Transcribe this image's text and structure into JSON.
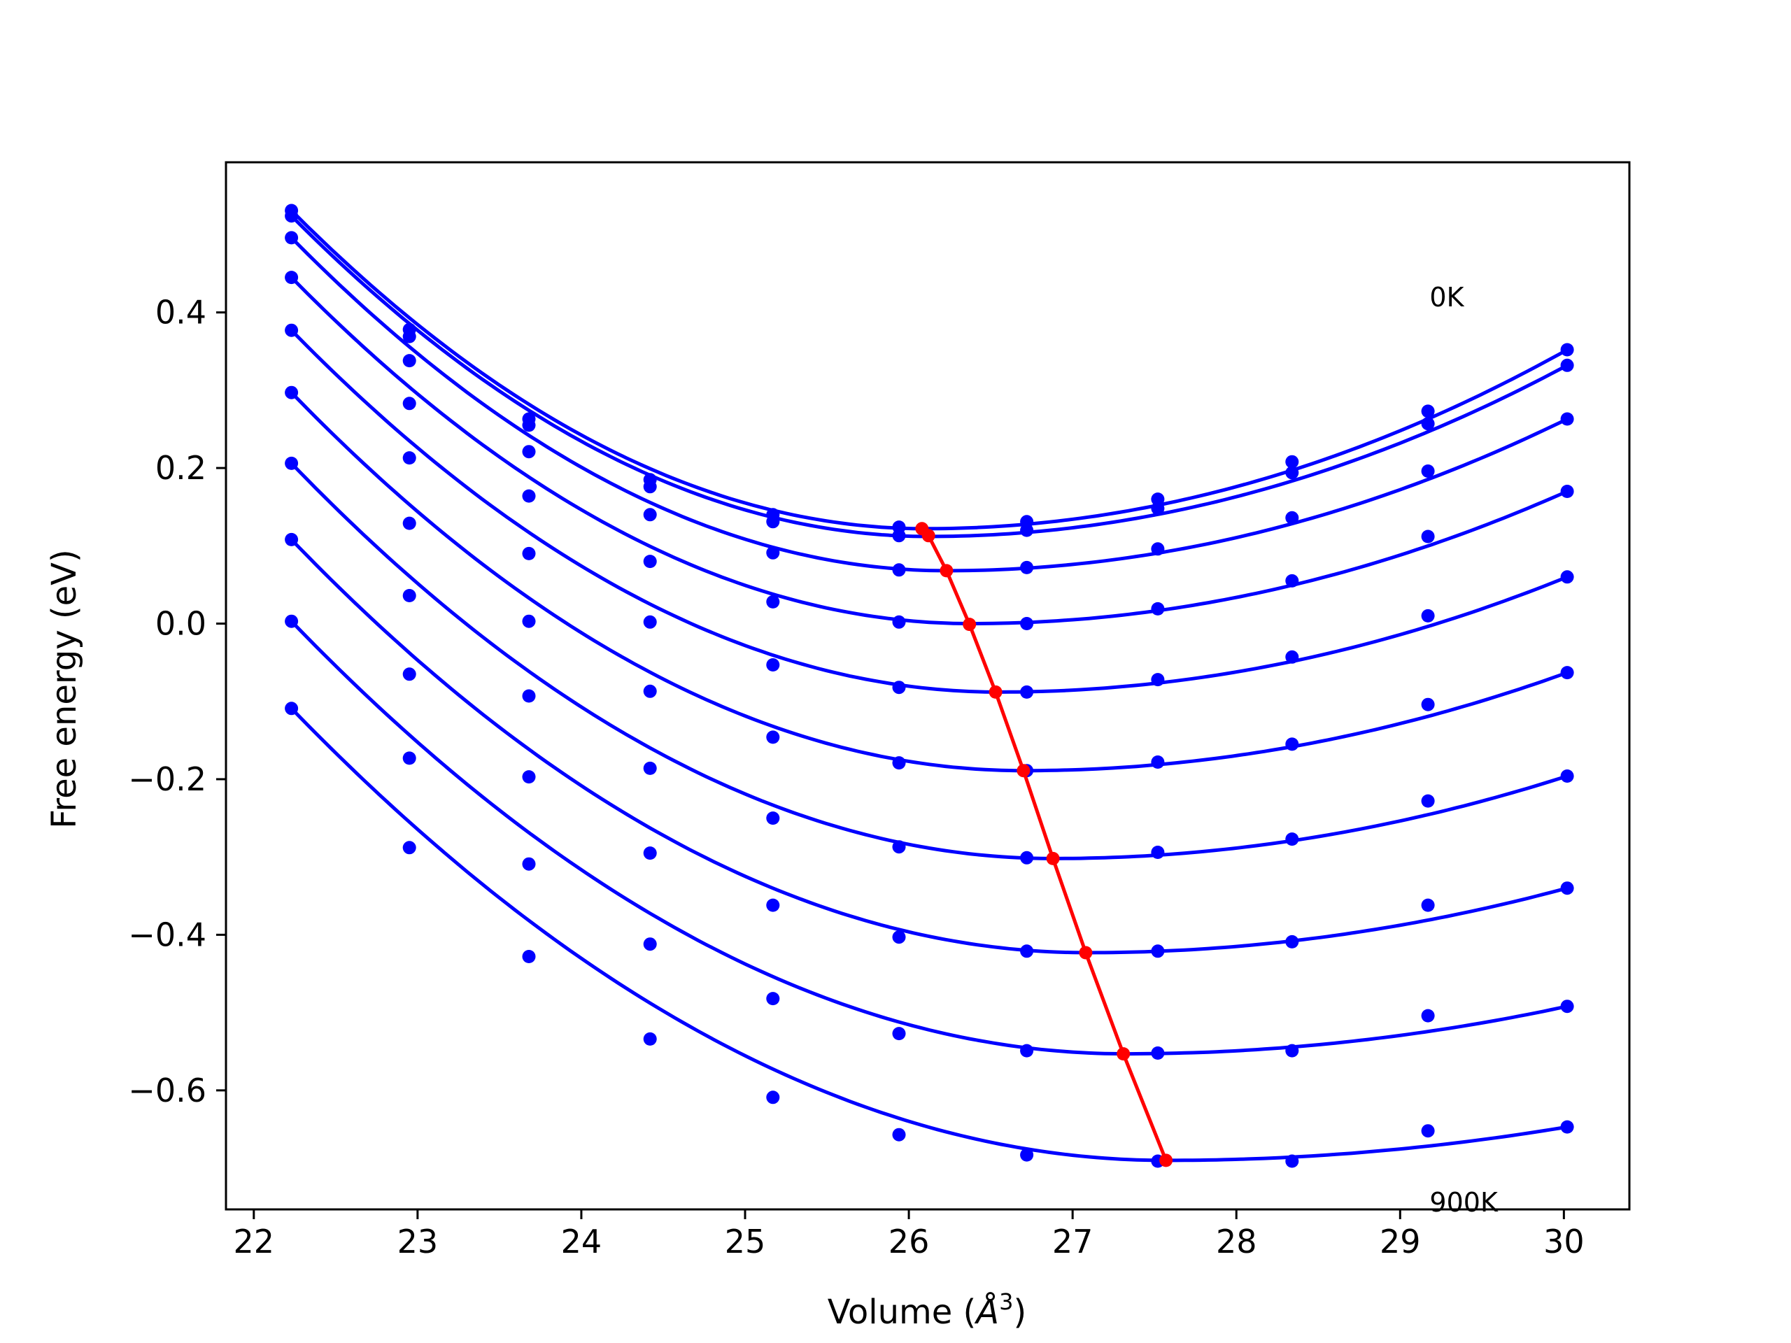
{
  "chart_data": {
    "type": "line",
    "title": "",
    "xlabel": "Volume (",
    "xlabel_sym": "Å",
    "xlabel_sup": "3",
    "xlabel_end": ")",
    "ylabel": "Free energy (eV)",
    "xlim": [
      21.83,
      30.4
    ],
    "ylim": [
      -0.753,
      0.593
    ],
    "x_ticks": [
      22,
      23,
      24,
      25,
      26,
      27,
      28,
      29,
      30
    ],
    "x_tick_labels": [
      "22",
      "23",
      "24",
      "25",
      "26",
      "27",
      "28",
      "29",
      "30"
    ],
    "y_ticks": [
      0.4,
      0.2,
      0.0,
      -0.2,
      -0.4,
      -0.6
    ],
    "y_tick_labels": [
      "0.4",
      "0.2",
      "0.0",
      "−0.2",
      "−0.4",
      "−0.6"
    ],
    "grid": false,
    "legend": "none",
    "annotations": [
      {
        "text": "0K",
        "x": 29.18,
        "y": 0.408
      },
      {
        "text": "900K",
        "x": 29.18,
        "y": -0.7555
      }
    ],
    "colors": {
      "series": "#0000ff",
      "minima": "#ff0000",
      "frame": "#000000"
    },
    "volumes": [
      22.23,
      22.95,
      23.68,
      24.42,
      25.17,
      25.94,
      26.72,
      27.52,
      28.34,
      29.17,
      30.02
    ],
    "series": [
      {
        "energies": [
          0.531,
          0.378,
          0.263,
          0.185,
          0.14,
          0.124,
          0.131,
          0.16,
          0.208,
          0.273,
          0.352
        ],
        "fit_min": [
          26.1,
          0.122
        ]
      },
      {
        "energies": [
          0.524,
          0.369,
          0.255,
          0.176,
          0.131,
          0.113,
          0.12,
          0.148,
          0.194,
          0.257,
          0.332
        ],
        "fit_min": [
          26.12,
          0.112
        ]
      },
      {
        "energies": [
          0.496,
          0.338,
          0.221,
          0.14,
          0.091,
          0.069,
          0.072,
          0.096,
          0.136,
          0.196,
          0.263
        ],
        "fit_min": [
          26.23,
          0.068
        ]
      },
      {
        "energies": [
          0.445,
          0.283,
          0.164,
          0.08,
          0.028,
          0.002,
          0.0,
          0.019,
          0.055,
          0.112,
          0.17
        ],
        "fit_min": [
          26.38,
          0.0
        ]
      },
      {
        "energies": [
          0.377,
          0.213,
          0.09,
          0.002,
          -0.053,
          -0.082,
          -0.088,
          -0.072,
          -0.043,
          0.01,
          0.06
        ],
        "fit_min": [
          26.55,
          -0.088
        ]
      },
      {
        "energies": [
          0.297,
          0.129,
          0.003,
          -0.087,
          -0.146,
          -0.179,
          -0.189,
          -0.178,
          -0.155,
          -0.104,
          -0.063
        ],
        "fit_min": [
          26.7,
          -0.189
        ]
      },
      {
        "energies": [
          0.206,
          0.036,
          -0.093,
          -0.186,
          -0.25,
          -0.287,
          -0.301,
          -0.294,
          -0.277,
          -0.228,
          -0.196
        ],
        "fit_min": [
          26.88,
          -0.302
        ]
      },
      {
        "energies": [
          0.108,
          -0.065,
          -0.197,
          -0.295,
          -0.362,
          -0.403,
          -0.421,
          -0.421,
          -0.409,
          -0.362,
          -0.34
        ],
        "fit_min": [
          27.09,
          -0.423
        ]
      },
      {
        "energies": [
          0.003,
          -0.173,
          -0.309,
          -0.412,
          -0.482,
          -0.527,
          -0.549,
          -0.552,
          -0.549,
          -0.504,
          -0.492
        ],
        "fit_min": [
          27.32,
          -0.553
        ]
      },
      {
        "energies": [
          -0.109,
          -0.288,
          -0.428,
          -0.534,
          -0.609,
          -0.657,
          -0.683,
          -0.691,
          -0.691,
          -0.652,
          -0.647
        ],
        "fit_min": [
          27.57,
          -0.69
        ]
      }
    ],
    "minima_line": {
      "x": [
        26.08,
        26.12,
        26.23,
        26.37,
        26.53,
        26.7,
        26.88,
        27.08,
        27.31,
        27.57
      ],
      "y": [
        0.122,
        0.113,
        0.068,
        -0.001,
        -0.088,
        -0.189,
        -0.302,
        -0.423,
        -0.553,
        -0.69
      ]
    }
  }
}
